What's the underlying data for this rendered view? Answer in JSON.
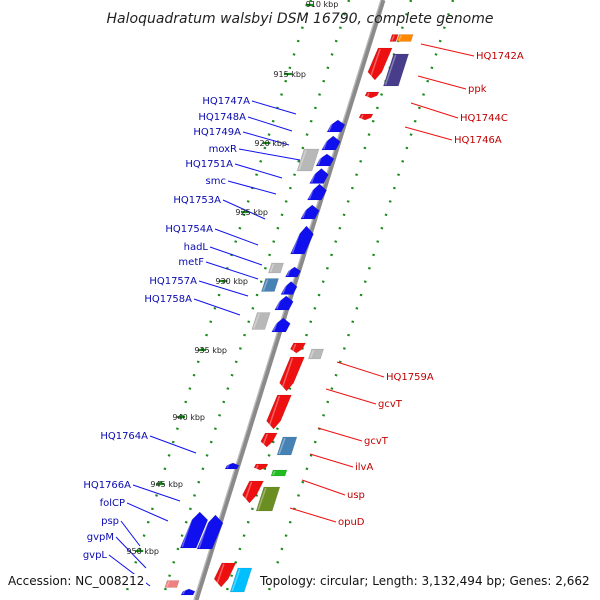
{
  "title": "Haloquadratum walsbyi DSM 16790, complete genome",
  "top_cut_label": "910 kbp",
  "tick_labels": [
    "915 kbp",
    "920 kbp",
    "925 kbp",
    "930 kbp",
    "935 kbp",
    "940 kbp",
    "945 kbp",
    "950 kbp"
  ],
  "left_genes": [
    "HQ1747A",
    "HQ1748A",
    "HQ1749A",
    "moxR",
    "HQ1751A",
    "smc",
    "HQ1753A",
    "HQ1754A",
    "hadL",
    "metF",
    "HQ1757A",
    "HQ1758A",
    "HQ1764A",
    "HQ1766A",
    "folCP",
    "psp",
    "gvpM",
    "gvpL"
  ],
  "right_genes": [
    "HQ1742A",
    "ppk",
    "HQ1744C",
    "HQ1746A",
    "HQ1759A",
    "gcvT",
    "gcvT",
    "ilvA",
    "usp",
    "opuD"
  ],
  "footer": {
    "accession": "Accession: NC_008212",
    "topology": "Topology: circular; Length: 3,132,494 bp; Genes: 2,662"
  },
  "colors": {
    "forward_strand": "#1010ee",
    "reverse_strand": "#ee1010",
    "backbone": "#888888",
    "ticks": "#1a8a1a",
    "unknown_gene": "#b8b8b8",
    "steelblue_gene": "#4682b4",
    "olive_gene": "#6b8e23",
    "green_gene": "#22bb22",
    "purple_gene": "#483d8b",
    "orange_gene": "#ff8800",
    "cyan_gene": "#00bfff",
    "pink_gene": "#f08080"
  }
}
